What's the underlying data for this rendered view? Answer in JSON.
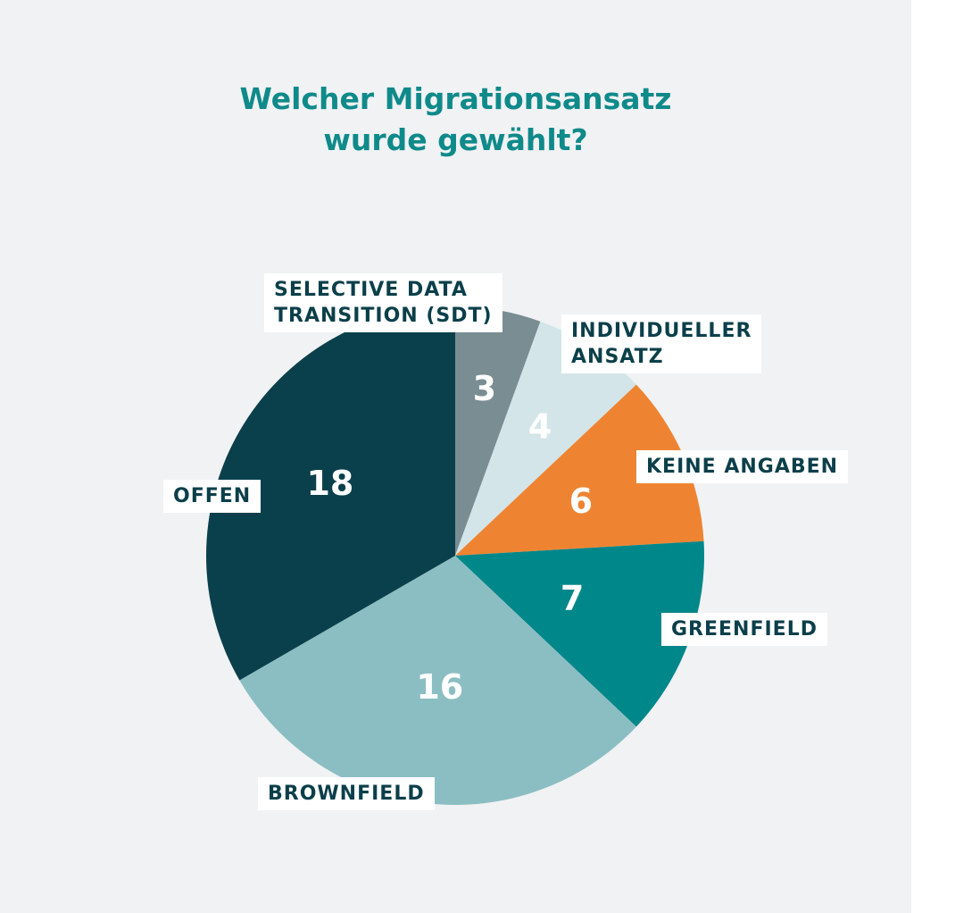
{
  "title": {
    "line1": "Welcher Migrationsansatz",
    "line2": "wurde gewählt?"
  },
  "chart_data": {
    "type": "pie",
    "title": "Welcher Migrationsansatz wurde gewählt?",
    "slices": [
      {
        "label_lines": [
          "SELECTIVE DATA",
          "TRANSITION (SDT)"
        ],
        "value": 3,
        "color": "#7a8d93",
        "value_color": "#ffffff"
      },
      {
        "label_lines": [
          "INDIVIDUELLER",
          "ANSATZ"
        ],
        "value": 4,
        "color": "#d3e5e8",
        "value_color": "#ffffff"
      },
      {
        "label_lines": [
          "KEINE ANGABEN"
        ],
        "value": 6,
        "color": "#ee8432",
        "value_color": "#ffffff"
      },
      {
        "label_lines": [
          "GREENFIELD"
        ],
        "value": 7,
        "color": "#00878a",
        "value_color": "#ffffff"
      },
      {
        "label_lines": [
          "BROWNFIELD"
        ],
        "value": 16,
        "color": "#8bbec3",
        "value_color": "#ffffff"
      },
      {
        "label_lines": [
          "OFFEN"
        ],
        "value": 18,
        "color": "#0a404b",
        "value_color": "#ffffff"
      }
    ],
    "legend": "none"
  },
  "colors": {
    "background": "#f1f2f4",
    "title": "#0f8a8a",
    "label_text": "#0b3f4a",
    "label_box": "#ffffff"
  }
}
